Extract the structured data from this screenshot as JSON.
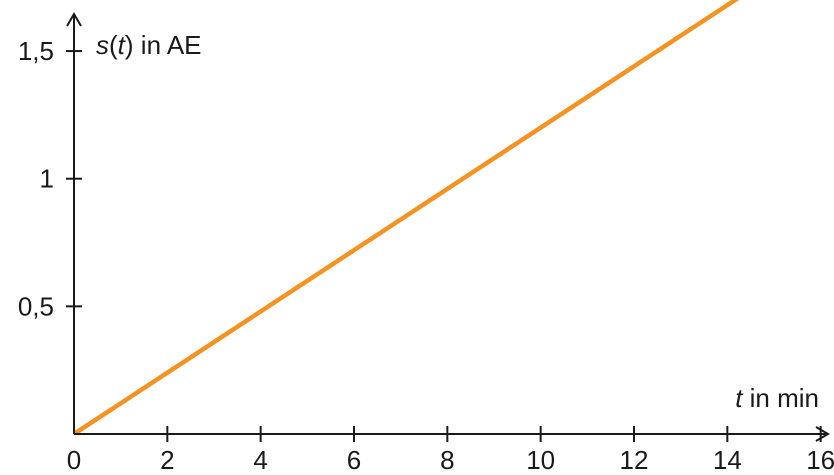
{
  "chart_data": {
    "type": "line",
    "title": "",
    "xlabel": {
      "var": "t",
      "suffix": " in min"
    },
    "ylabel": {
      "func": "s",
      "open": "(",
      "var": "t",
      "close": ")",
      "suffix": " in AE"
    },
    "xlim": [
      0,
      16.2
    ],
    "ylim": [
      0,
      1.7
    ],
    "x_ticks": [
      0,
      2,
      4,
      6,
      8,
      10,
      12,
      14,
      16
    ],
    "x_tick_labels": [
      "0",
      "2",
      "4",
      "6",
      "8",
      "10",
      "12",
      "14",
      "16"
    ],
    "y_ticks": [
      0.5,
      1,
      1.5
    ],
    "y_tick_labels": [
      "0,5",
      "1",
      "1,5"
    ],
    "grid": false,
    "series": [
      {
        "color": "#f39325",
        "x": [
          0,
          14.5
        ],
        "y": [
          0,
          1.74
        ]
      }
    ]
  }
}
